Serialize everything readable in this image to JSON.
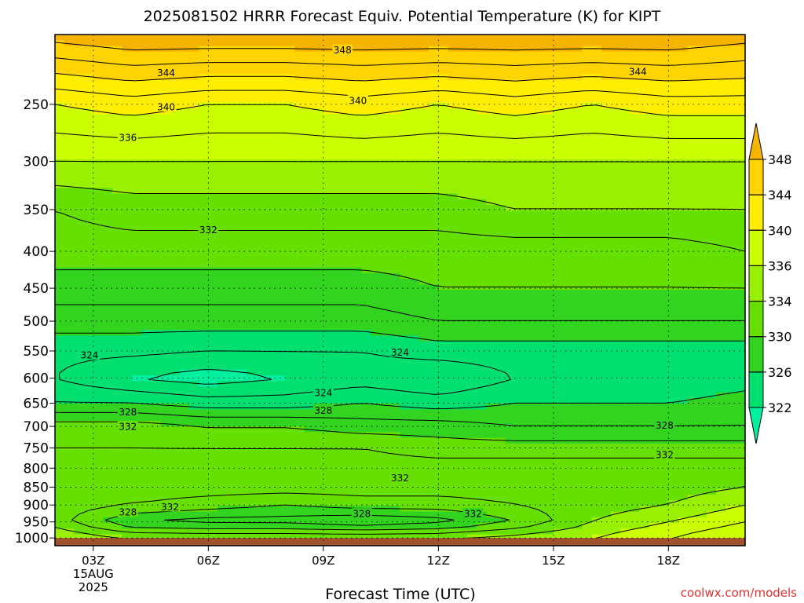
{
  "chart_data": {
    "type": "heatmap",
    "title": "2025081502 HRRR Forecast Equiv. Potential Temperature (K) for KIPT",
    "xlabel": "Forecast Time (UTC)",
    "ylabel": "",
    "y_axis": {
      "scale": "log-pressure",
      "ticks": [
        250,
        300,
        350,
        400,
        450,
        500,
        550,
        600,
        650,
        700,
        750,
        800,
        850,
        900,
        950,
        1000
      ],
      "range": [
        200,
        1025
      ]
    },
    "x_axis": {
      "range_hours": [
        2,
        20
      ],
      "ticks": [
        {
          "hour": 3,
          "label": "03Z",
          "date_line1": "15AUG",
          "date_line2": "2025"
        },
        {
          "hour": 6,
          "label": "06Z"
        },
        {
          "hour": 9,
          "label": "09Z"
        },
        {
          "hour": 12,
          "label": "12Z"
        },
        {
          "hour": 15,
          "label": "15Z"
        },
        {
          "hour": 18,
          "label": "18Z"
        }
      ]
    },
    "grid": "dotted at tick positions",
    "colorbar": {
      "position": "right",
      "levels": [
        322,
        326,
        330,
        334,
        336,
        340,
        344,
        348
      ],
      "colors": [
        "#00f0a0",
        "#00e070",
        "#33d420",
        "#66e000",
        "#99f000",
        "#ccff00",
        "#ffee00",
        "#ffd400",
        "#f5b400"
      ]
    },
    "contour_interval_K": 2,
    "contour_labels": [
      {
        "text": "348",
        "hour": 9.5,
        "p": 210
      },
      {
        "text": "344",
        "hour": 4.9,
        "p": 226
      },
      {
        "text": "344",
        "hour": 17.2,
        "p": 225
      },
      {
        "text": "340",
        "hour": 4.9,
        "p": 252
      },
      {
        "text": "340",
        "hour": 9.9,
        "p": 247
      },
      {
        "text": "336",
        "hour": 3.9,
        "p": 278
      },
      {
        "text": "332",
        "hour": 6.0,
        "p": 373
      },
      {
        "text": "324",
        "hour": 2.9,
        "p": 557
      },
      {
        "text": "324",
        "hour": 11.0,
        "p": 552
      },
      {
        "text": "324",
        "hour": 9.0,
        "p": 628
      },
      {
        "text": "328",
        "hour": 3.9,
        "p": 668
      },
      {
        "text": "328",
        "hour": 9.0,
        "p": 665
      },
      {
        "text": "332",
        "hour": 3.9,
        "p": 700
      },
      {
        "text": "328",
        "hour": 17.9,
        "p": 697
      },
      {
        "text": "332",
        "hour": 17.9,
        "p": 766
      },
      {
        "text": "332",
        "hour": 11.0,
        "p": 825
      },
      {
        "text": "332",
        "hour": 5.0,
        "p": 905
      },
      {
        "text": "328",
        "hour": 3.9,
        "p": 920
      },
      {
        "text": "328",
        "hour": 10.0,
        "p": 925
      },
      {
        "text": "332",
        "hour": 12.9,
        "p": 925
      }
    ],
    "profile_hours": [
      2,
      4,
      6,
      8,
      10,
      12,
      14,
      16,
      18,
      20
    ],
    "profile_levels_hPa": [
      200,
      250,
      300,
      350,
      400,
      450,
      500,
      550,
      600,
      650,
      700,
      750,
      800,
      850,
      900,
      950,
      1000
    ],
    "theta_e_K": [
      [
        349,
        350,
        350,
        350,
        350,
        350,
        350,
        350,
        350,
        349
      ],
      [
        340,
        341,
        340,
        340,
        341,
        340,
        341,
        340,
        341,
        341
      ],
      [
        336,
        336,
        336,
        336,
        336,
        336,
        336,
        336,
        336,
        336
      ],
      [
        332,
        333,
        333,
        333,
        333,
        333,
        334,
        334,
        334,
        334
      ],
      [
        331,
        331,
        331,
        331,
        331,
        331,
        331,
        331,
        331,
        332
      ],
      [
        329,
        329,
        329,
        329,
        329,
        330,
        330,
        330,
        330,
        330
      ],
      [
        327,
        327,
        327,
        327,
        327,
        328,
        328,
        328,
        328,
        328
      ],
      [
        324.5,
        324.5,
        324,
        324,
        324,
        325,
        325,
        325,
        325,
        325
      ],
      [
        324,
        322,
        321,
        322,
        323,
        322,
        324,
        324,
        324,
        325
      ],
      [
        326,
        326,
        325,
        325,
        326,
        325,
        326,
        326,
        326,
        327
      ],
      [
        331,
        331,
        330,
        330,
        329,
        329,
        328,
        328,
        328,
        328
      ],
      [
        332,
        332,
        332,
        332,
        332,
        331,
        331,
        331,
        331,
        331
      ],
      [
        333,
        333,
        333,
        333,
        333,
        333,
        333,
        333,
        333,
        333
      ],
      [
        334,
        333,
        333,
        333,
        333,
        333,
        333,
        333,
        333,
        334
      ],
      [
        333,
        332,
        331,
        330,
        331,
        331,
        332,
        333,
        334,
        336
      ],
      [
        333,
        328,
        327,
        327,
        326,
        327,
        330,
        334,
        336,
        338
      ],
      [
        336,
        334,
        334,
        334,
        334,
        334,
        335,
        336,
        338,
        340
      ]
    ],
    "ground": {
      "from_hPa": 1000,
      "color": "#a0522d"
    },
    "credit": "coolwx.com/models"
  }
}
